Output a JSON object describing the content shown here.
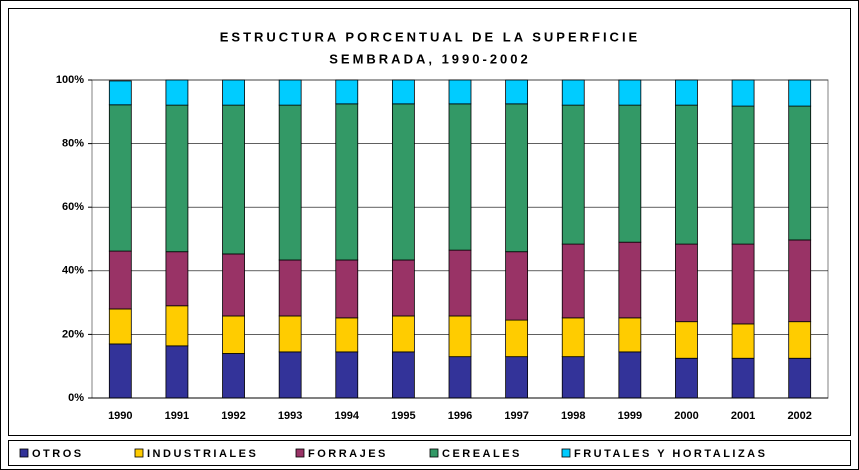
{
  "chart_data": {
    "type": "stacked_bar",
    "title": [
      "ESTRUCTURA PORCENTUAL DE LA SUPERFICIE",
      "SEMBRADA, 1990-2002"
    ],
    "categories": [
      "1990",
      "1991",
      "1992",
      "1993",
      "1994",
      "1995",
      "1996",
      "1997",
      "1998",
      "1999",
      "2000",
      "2001",
      "2002"
    ],
    "series": [
      {
        "name": "OTROS",
        "color": "#333399",
        "values": [
          17,
          16.4,
          14,
          14.5,
          14.5,
          14.5,
          13,
          13,
          13,
          14.5,
          12.5,
          12.5,
          12.5
        ]
      },
      {
        "name": "INDUSTRIALES",
        "color": "#ffcc00",
        "values": [
          11,
          12.6,
          11.8,
          11.3,
          10.7,
          11.3,
          12.8,
          11.5,
          12.2,
          10.7,
          11.5,
          10.8,
          11.5
        ]
      },
      {
        "name": "FORRAJES",
        "color": "#993366",
        "values": [
          18.2,
          17,
          19.5,
          17.6,
          18.2,
          17.6,
          20.7,
          21.5,
          23.2,
          23.8,
          24.4,
          25.1,
          25.7
        ]
      },
      {
        "name": "CEREALES",
        "color": "#339966",
        "values": [
          46,
          46.1,
          46.8,
          48.7,
          49.1,
          49.1,
          46,
          46.5,
          43.7,
          43.1,
          43.7,
          43.4,
          42.1
        ]
      },
      {
        "name": "FRUTALES Y HORTALIZAS",
        "color": "#00ccff",
        "values": [
          7.5,
          7.9,
          7.9,
          7.9,
          7.5,
          7.5,
          7.5,
          7.5,
          7.9,
          7.9,
          7.9,
          8.2,
          8.2
        ]
      }
    ],
    "ylim": [
      0,
      100
    ],
    "yticks": [
      {
        "value": 0,
        "label": "0%"
      },
      {
        "value": 20,
        "label": "20%"
      },
      {
        "value": 40,
        "label": "40%"
      },
      {
        "value": 60,
        "label": "60%"
      },
      {
        "value": 80,
        "label": "80%"
      },
      {
        "value": 100,
        "label": "100%"
      }
    ],
    "grid": true,
    "legend": "bottom"
  }
}
